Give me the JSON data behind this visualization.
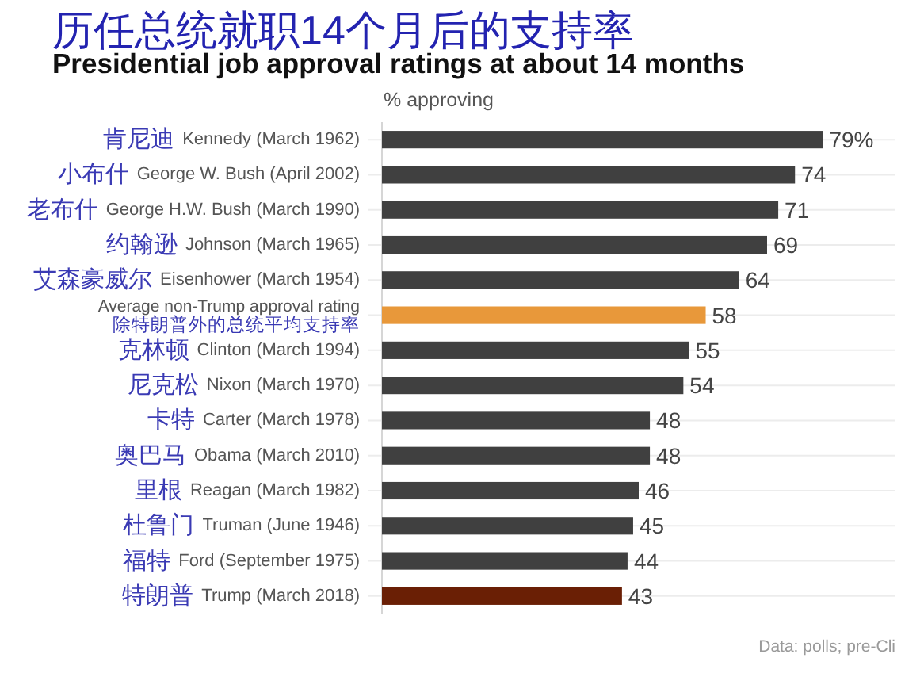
{
  "chart_data": {
    "type": "bar",
    "orientation": "horizontal",
    "title": "历任总统就职14个月后的支持率",
    "subtitle": "Presidential job approval ratings at about 14 months",
    "xlabel": "% approving",
    "categories": [
      "Kennedy (March 1962)",
      "George W. Bush (April 2002)",
      "George H.W. Bush (March 1990)",
      "Johnson (March 1965)",
      "Eisenhower (March 1954)",
      "Average non-Trump approval rating",
      "Clinton (March 1994)",
      "Nixon (March 1970)",
      "Carter (March 1978)",
      "Obama (March 2010)",
      "Reagan (March 1982)",
      "Truman (June 1946)",
      "Ford (September 1975)",
      "Trump (March 2018)"
    ],
    "values": [
      79,
      74,
      71,
      69,
      64,
      58,
      55,
      54,
      48,
      48,
      46,
      45,
      44,
      43
    ],
    "value_labels": [
      "79%",
      "74",
      "71",
      "69",
      "64",
      "58",
      "55",
      "54",
      "48",
      "48",
      "46",
      "45",
      "44",
      "43"
    ],
    "colors": [
      "#404040",
      "#404040",
      "#404040",
      "#404040",
      "#404040",
      "#e8983a",
      "#404040",
      "#404040",
      "#404040",
      "#404040",
      "#404040",
      "#404040",
      "#404040",
      "#6a1f05"
    ],
    "xlim": [
      0,
      92
    ],
    "grid": "y",
    "tick_labels": "y",
    "annotations": [
      "肯尼迪",
      "小布什",
      "老布什",
      "约翰逊",
      "艾森豪威尔",
      "除特朗普外的总统平均支持率",
      "克林顿",
      "尼克松",
      "卡特",
      "奥巴马",
      "里根",
      "杜鲁门",
      "福特",
      "特朗普",
      "Data: polls; pre-Cli"
    ]
  }
}
